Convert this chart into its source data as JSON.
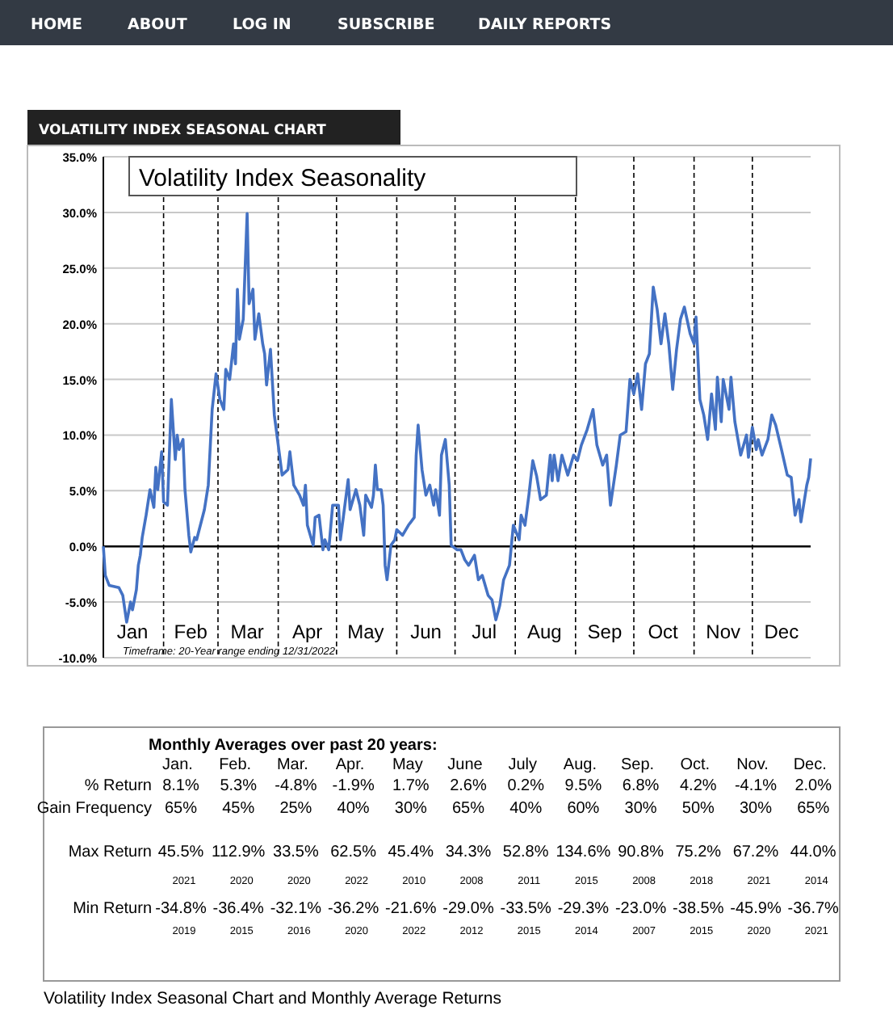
{
  "chart_data": [
    {
      "type": "line",
      "title": "VOLATILITY INDEX SEASONAL CHART",
      "subtitle": "Volatility Index Seasonality",
      "annotations": [
        "HOME",
        "ABOUT",
        "LOG IN",
        "SUBSCRIBE",
        "DAILY REPORTS",
        "Timeframe: 20-Year range ending 12/31/2022"
      ],
      "xlim": [
        "--01-01",
        "--12-31"
      ],
      "xticks": [
        {
          "value": "--01-16",
          "label": "Jan"
        },
        {
          "value": "--02-15",
          "label": "Feb"
        },
        {
          "value": "--03-16",
          "label": "Mar"
        },
        {
          "value": "--04-16",
          "label": "Apr"
        },
        {
          "value": "--05-16",
          "label": "May"
        },
        {
          "value": "--06-16",
          "label": "Jun"
        },
        {
          "value": "--07-16",
          "label": "Jul"
        },
        {
          "value": "--08-16",
          "label": "Aug"
        },
        {
          "value": "--09-16",
          "label": "Sep"
        },
        {
          "value": "--10-16",
          "label": "Oct"
        },
        {
          "value": "--11-16",
          "label": "Nov"
        },
        {
          "value": "--12-16",
          "label": "Dec"
        }
      ],
      "ylim": [
        -10,
        35
      ],
      "yticks": [
        {
          "value": -10,
          "label": "-10.0%"
        },
        {
          "value": -5,
          "label": "-5.0%"
        },
        {
          "value": 0,
          "label": "0.0%"
        },
        {
          "value": 5,
          "label": "5.0%"
        },
        {
          "value": 10,
          "label": "10.0%"
        },
        {
          "value": 15,
          "label": "15.0%"
        },
        {
          "value": 20,
          "label": "20.0%"
        },
        {
          "value": 25,
          "label": "25.0%"
        },
        {
          "value": 30,
          "label": "30.0%"
        },
        {
          "value": 35,
          "label": "35.0%"
        }
      ],
      "grid": "y",
      "marker": "none",
      "line_style": "solid",
      "ref_lines": [
        {
          "axis": "y",
          "value": 0,
          "color": "#000000",
          "line_style": "solid"
        },
        {
          "axis": "x",
          "value": "--02-01",
          "line_style": "dashed",
          "color": "#000000"
        },
        {
          "axis": "x",
          "value": "--03-01",
          "line_style": "dashed",
          "color": "#000000"
        },
        {
          "axis": "x",
          "value": "--04-01",
          "line_style": "dashed",
          "color": "#000000"
        },
        {
          "axis": "x",
          "value": "--05-01",
          "line_style": "dashed",
          "color": "#000000"
        },
        {
          "axis": "x",
          "value": "--06-01",
          "line_style": "dashed",
          "color": "#000000"
        },
        {
          "axis": "x",
          "value": "--07-01",
          "line_style": "dashed",
          "color": "#000000"
        },
        {
          "axis": "x",
          "value": "--08-01",
          "line_style": "dashed",
          "color": "#000000"
        },
        {
          "axis": "x",
          "value": "--09-01",
          "line_style": "dashed",
          "color": "#000000"
        },
        {
          "axis": "x",
          "value": "--10-01",
          "line_style": "dashed",
          "color": "#000000"
        },
        {
          "axis": "x",
          "value": "--11-01",
          "line_style": "dashed",
          "color": "#000000"
        },
        {
          "axis": "x",
          "value": "--12-01",
          "line_style": "dashed",
          "color": "#000000"
        }
      ],
      "series": [
        {
          "color": "#4472c4",
          "x": [
            "--01-01",
            "--01-02",
            "--01-04",
            "--01-09",
            "--01-11",
            "--01-13",
            "--01-15",
            "--01-16",
            "--01-18",
            "--01-19",
            "--01-20",
            "--01-21",
            "--01-23",
            "--01-25",
            "--01-27",
            "--01-28",
            "--01-29",
            "--01-31",
            "--02-01",
            "--02-03",
            "--02-05",
            "--02-07",
            "--02-08",
            "--02-09",
            "--02-11",
            "--02-12",
            "--02-14",
            "--02-15",
            "--02-17",
            "--02-18",
            "--02-22",
            "--02-24",
            "--02-26",
            "--02-28",
            "--03-02",
            "--03-04",
            "--03-05",
            "--03-07",
            "--03-09",
            "--03-10",
            "--03-11",
            "--03-12",
            "--03-14",
            "--03-16",
            "--03-17",
            "--03-19",
            "--03-20",
            "--03-22",
            "--03-24",
            "--03-25",
            "--03-26",
            "--03-28",
            "--03-30",
            "--04-01",
            "--04-03",
            "--04-06",
            "--04-07",
            "--04-09",
            "--04-12",
            "--04-14",
            "--04-15",
            "--04-16",
            "--04-19",
            "--04-20",
            "--04-22",
            "--04-24",
            "--04-25",
            "--04-27",
            "--04-29",
            "--05-02",
            "--05-03",
            "--05-07",
            "--05-08",
            "--05-11",
            "--05-13",
            "--05-15",
            "--05-16",
            "--05-19",
            "--05-20",
            "--05-21",
            "--05-22",
            "--05-24",
            "--05-25",
            "--05-26",
            "--05-27",
            "--05-29",
            "--05-31",
            "--06-01",
            "--06-04",
            "--06-07",
            "--06-10",
            "--06-11",
            "--06-12",
            "--06-14",
            "--06-16",
            "--06-18",
            "--06-20",
            "--06-21",
            "--06-23",
            "--06-24",
            "--06-26",
            "--06-28",
            "--06-29",
            "--07-02",
            "--07-04",
            "--07-06",
            "--07-08",
            "--07-11",
            "--07-13",
            "--07-15",
            "--07-18",
            "--07-20",
            "--07-22",
            "--07-24",
            "--07-26",
            "--07-29",
            "--07-31",
            "--08-03",
            "--08-04",
            "--08-06",
            "--08-08",
            "--08-10",
            "--08-12",
            "--08-14",
            "--08-17",
            "--08-19",
            "--08-20",
            "--08-21",
            "--08-23",
            "--08-25",
            "--08-28",
            "--08-31",
            "--09-02",
            "--09-04",
            "--09-07",
            "--09-10",
            "--09-12",
            "--09-15",
            "--09-17",
            "--09-19",
            "--09-22",
            "--09-24",
            "--09-27",
            "--09-29",
            "--10-01",
            "--10-03",
            "--10-05",
            "--10-07",
            "--10-09",
            "--10-11",
            "--10-13",
            "--10-15",
            "--10-17",
            "--10-19",
            "--10-21",
            "--10-23",
            "--10-25",
            "--10-27",
            "--10-30",
            "--11-01",
            "--11-02",
            "--11-04",
            "--11-06",
            "--11-08",
            "--11-10",
            "--11-12",
            "--11-13",
            "--11-15",
            "--11-16",
            "--11-19",
            "--11-20",
            "--11-22",
            "--11-25",
            "--11-28",
            "--11-29",
            "--12-01",
            "--12-03",
            "--12-04",
            "--12-06",
            "--12-09",
            "--12-11",
            "--12-13",
            "--12-16",
            "--12-19",
            "--12-21",
            "--12-23",
            "--12-25",
            "--12-26",
            "--12-29",
            "--12-30",
            "--12-31"
          ],
          "values": [
            0,
            -2.6,
            -3.5,
            -3.7,
            -4.4,
            -6.8,
            -5.0,
            -5.7,
            -3.9,
            -1.7,
            -0.8,
            0.8,
            2.8,
            5.1,
            3.5,
            7.1,
            5.1,
            8.5,
            4.0,
            3.7,
            13.2,
            7.8,
            10.0,
            8.7,
            9.6,
            5.1,
            1.0,
            -0.5,
            0.8,
            0.6,
            3.3,
            5.5,
            12.3,
            15.5,
            13.2,
            12.3,
            15.9,
            15.0,
            18.2,
            16.4,
            23.1,
            18.6,
            20.4,
            29.9,
            21.8,
            23.1,
            18.6,
            20.9,
            18.2,
            17.3,
            14.5,
            17.7,
            11.8,
            9.1,
            6.4,
            6.9,
            8.5,
            5.5,
            4.6,
            3.7,
            5.5,
            1.9,
            0.1,
            2.6,
            2.8,
            -0.3,
            0.6,
            -0.3,
            3.7,
            3.7,
            0.6,
            6.0,
            3.3,
            5.1,
            3.7,
            1.0,
            4.6,
            3.5,
            4.6,
            7.3,
            5.1,
            5.1,
            3.7,
            -1.7,
            -3.0,
            0.1,
            0.6,
            1.5,
            1.0,
            1.9,
            2.6,
            8.2,
            10.9,
            6.9,
            4.6,
            5.5,
            3.7,
            5.1,
            2.8,
            8.2,
            9.6,
            5.5,
            0.1,
            -0.3,
            -0.3,
            -1.2,
            -1.7,
            -0.8,
            -3.0,
            -2.6,
            -4.4,
            -4.8,
            -6.6,
            -5.3,
            -3.0,
            -1.7,
            1.9,
            0.6,
            2.8,
            1.9,
            4.6,
            7.7,
            6.3,
            4.2,
            4.6,
            8.2,
            5.9,
            8.2,
            5.9,
            8.2,
            6.4,
            8.2,
            7.7,
            9.1,
            10.5,
            12.3,
            9.1,
            7.3,
            8.2,
            3.7,
            7.3,
            10.0,
            10.3,
            15.0,
            13.7,
            15.5,
            12.3,
            16.4,
            17.3,
            23.3,
            21.3,
            18.2,
            20.9,
            18.2,
            14.1,
            17.7,
            20.4,
            21.5,
            19.1,
            18.2,
            20.6,
            13.2,
            11.8,
            9.6,
            13.7,
            10.5,
            15.2,
            11.2,
            15.0,
            12.3,
            15.2,
            11.2,
            8.2,
            10.0,
            8.0,
            10.7,
            8.7,
            9.6,
            8.2,
            9.6,
            11.8,
            10.9,
            8.7,
            6.4,
            6.2,
            2.8,
            4.2,
            2.2,
            5.5,
            6.2,
            7.9
          ]
        }
      ]
    },
    {
      "type": "heatmap",
      "title": "Monthly Averages over past 20 years:",
      "annotations": [
        "Volatility Index Seasonal Chart and Monthly Average Returns"
      ],
      "categories": [
        "Jan.",
        "Feb.",
        "Mar.",
        "Apr.",
        "May",
        "June",
        "July",
        "Aug.",
        "Sep.",
        "Oct.",
        "Nov.",
        "Dec."
      ],
      "y_categories": [
        "% Return",
        "Gain Frequency",
        "Max Return",
        null,
        "Min Return",
        null
      ],
      "cells": [
        [
          8.1,
          5.3,
          -4.8,
          -1.9,
          1.7,
          2.6,
          0.2,
          9.5,
          6.8,
          4.2,
          -4.1,
          2.0
        ],
        [
          65,
          45,
          25,
          40,
          30,
          65,
          40,
          60,
          30,
          50,
          30,
          65
        ],
        [
          45.5,
          112.9,
          33.5,
          62.5,
          45.4,
          34.3,
          52.8,
          134.6,
          90.8,
          75.2,
          67.2,
          44.0
        ],
        [
          2021,
          2020,
          2020,
          2022,
          2010,
          2008,
          2011,
          2015,
          2008,
          2018,
          2021,
          2014
        ],
        [
          -34.8,
          -36.4,
          -32.1,
          -36.2,
          -21.6,
          -29.0,
          -33.5,
          -29.3,
          -23.0,
          -38.5,
          -45.9,
          -36.7
        ],
        [
          2019,
          2015,
          2016,
          2020,
          2022,
          2012,
          2015,
          2014,
          2007,
          2015,
          2020,
          2021
        ]
      ],
      "cell_labels": [
        [
          "8.1%",
          "5.3%",
          "-4.8%",
          "-1.9%",
          "1.7%",
          "2.6%",
          "0.2%",
          "9.5%",
          "6.8%",
          "4.2%",
          "-4.1%",
          "2.0%"
        ],
        [
          "65%",
          "45%",
          "25%",
          "40%",
          "30%",
          "65%",
          "40%",
          "60%",
          "30%",
          "50%",
          "30%",
          "65%"
        ],
        [
          "45.5%",
          "112.9%",
          "33.5%",
          "62.5%",
          "45.4%",
          "34.3%",
          "52.8%",
          "134.6%",
          "90.8%",
          "75.2%",
          "67.2%",
          "44.0%"
        ],
        [
          "2021",
          "2020",
          "2020",
          "2022",
          "2010",
          "2008",
          "2011",
          "2015",
          "2008",
          "2018",
          "2021",
          "2014"
        ],
        [
          "-34.8%",
          "-36.4%",
          "-32.1%",
          "-36.2%",
          "-21.6%",
          "-29.0%",
          "-33.5%",
          "-29.3%",
          "-23.0%",
          "-38.5%",
          "-45.9%",
          "-36.7%"
        ],
        [
          "2019",
          "2015",
          "2016",
          "2020",
          "2022",
          "2012",
          "2015",
          "2014",
          "2007",
          "2015",
          "2020",
          "2021"
        ]
      ]
    }
  ]
}
